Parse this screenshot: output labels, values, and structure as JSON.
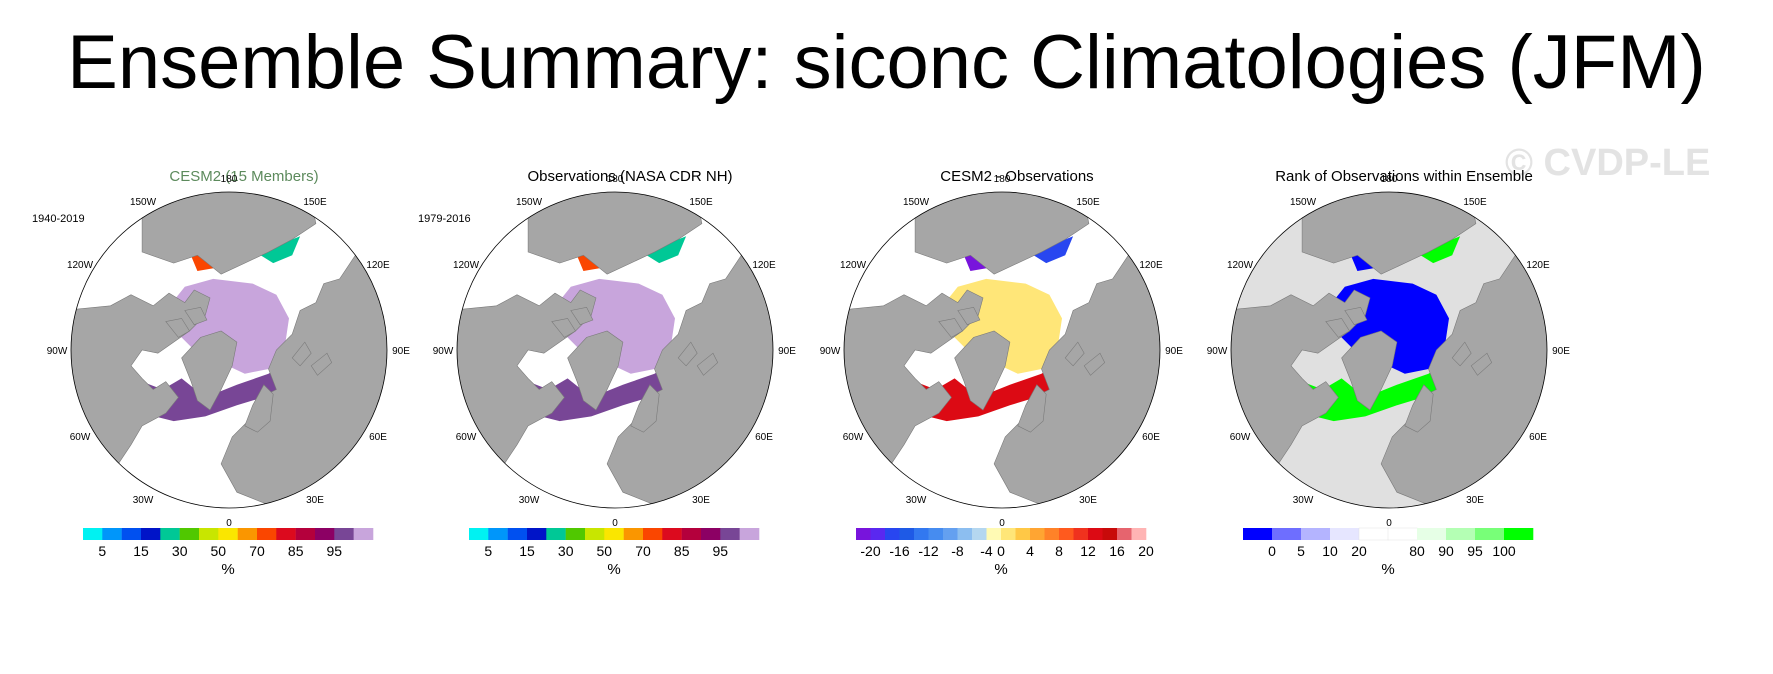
{
  "title": "Ensemble Summary: siconc Climatologies (JFM)",
  "watermark": "© CVDP-LE",
  "colors": {
    "land": "#a6a6a6",
    "cesm_title": "#5c8a5c"
  },
  "panels": [
    {
      "title": "CESM2 (15 Members)",
      "period": "1940-2019",
      "ocean": "#ffffff",
      "map_type": "concentration",
      "colorbar": {
        "colors": [
          "#00f2f2",
          "#0096fa",
          "#0050f0",
          "#0014c8",
          "#00c896",
          "#50c800",
          "#c8e600",
          "#fae600",
          "#fa9600",
          "#fa4600",
          "#dc0a1e",
          "#b4003c",
          "#8c0064",
          "#784696",
          "#c8a5dc"
        ],
        "labels": [
          "5",
          "15",
          "30",
          "50",
          "70",
          "85",
          "95"
        ],
        "label_slots": [
          1,
          3,
          5,
          7,
          9,
          11,
          13
        ],
        "unit": "%"
      }
    },
    {
      "title": "Observations (NASA CDR NH)",
      "period": "1979-2016",
      "ocean": "#ffffff",
      "map_type": "concentration",
      "colorbar": {
        "colors": [
          "#00f2f2",
          "#0096fa",
          "#0050f0",
          "#0014c8",
          "#00c896",
          "#50c800",
          "#c8e600",
          "#fae600",
          "#fa9600",
          "#fa4600",
          "#dc0a1e",
          "#b4003c",
          "#8c0064",
          "#784696",
          "#c8a5dc"
        ],
        "labels": [
          "5",
          "15",
          "30",
          "50",
          "70",
          "85",
          "95"
        ],
        "label_slots": [
          1,
          3,
          5,
          7,
          9,
          11,
          13
        ],
        "unit": "%"
      }
    },
    {
      "title": "CESM2 - Observations",
      "period": "",
      "ocean": "#ffffff",
      "map_type": "difference",
      "colorbar": {
        "colors": [
          "#7814dc",
          "#5a28f0",
          "#2846f0",
          "#1e5ae6",
          "#3278f0",
          "#468cf0",
          "#64a0f0",
          "#8cbef0",
          "#b4d7f0",
          "#fffab4",
          "#ffe678",
          "#ffc846",
          "#ffa532",
          "#ff8228",
          "#ff5a1e",
          "#f0321e",
          "#dc0a14",
          "#c80a0a",
          "#e6646e",
          "#ffb4b4"
        ],
        "labels": [
          "-20",
          "-16",
          "-12",
          "-8",
          "-4",
          "0",
          "4",
          "8",
          "12",
          "16",
          "20"
        ],
        "label_slots": [
          1,
          3,
          5,
          7,
          9,
          10,
          12,
          14,
          16,
          18,
          20
        ],
        "unit": "%"
      }
    },
    {
      "title": "Rank of Observations within Ensemble",
      "period": "",
      "ocean": "#e0e0e0",
      "map_type": "rank",
      "colorbar": {
        "colors": [
          "#0000ff",
          "#6e6eff",
          "#b4b4ff",
          "#e6e6ff",
          "#ffffff",
          "#ffffff",
          "#e6ffe6",
          "#b4ffb4",
          "#78ff78",
          "#00ff00"
        ],
        "labels": [
          "0",
          "5",
          "10",
          "20",
          "80",
          "90",
          "95",
          "100"
        ],
        "label_slots": [
          1,
          2,
          3,
          4,
          6,
          7,
          8,
          9
        ],
        "unit": "%"
      }
    }
  ],
  "lon_labels": [
    "180",
    "150E",
    "120E",
    "90E",
    "60E",
    "30E",
    "0",
    "30W",
    "60W",
    "90W",
    "120W",
    "150W"
  ]
}
